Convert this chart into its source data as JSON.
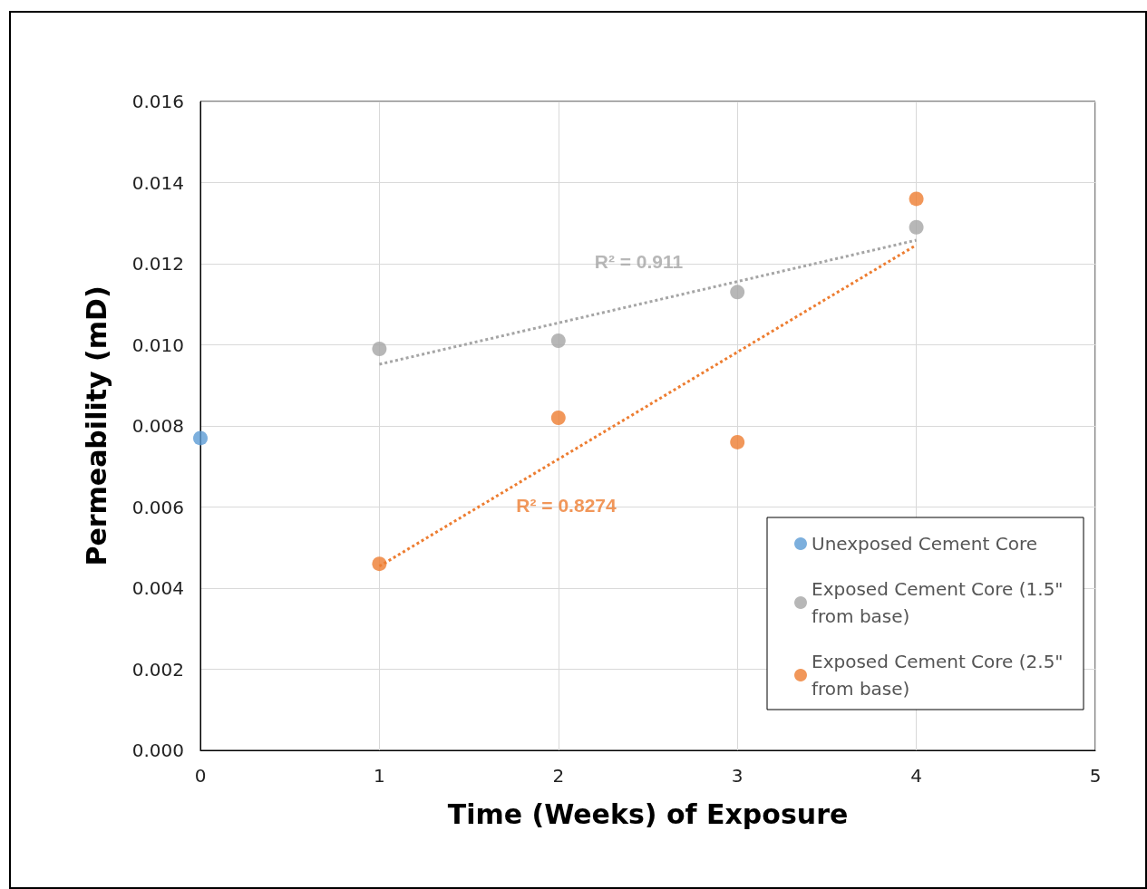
{
  "chart_data": {
    "type": "scatter",
    "xlabel": "Time (Weeks) of Exposure",
    "ylabel": "Permeability (mD)",
    "xlim": [
      0,
      5
    ],
    "xticks": [
      0,
      1,
      2,
      3,
      4,
      5
    ],
    "ylim": [
      0,
      0.016
    ],
    "yticks": [
      {
        "value": 0,
        "label": "0.000"
      },
      {
        "value": 0.002,
        "label": "0.002"
      },
      {
        "value": 0.004,
        "label": "0.004"
      },
      {
        "value": 0.006,
        "label": "0.006"
      },
      {
        "value": 0.008,
        "label": "0.008"
      },
      {
        "value": 0.01,
        "label": "0.010"
      },
      {
        "value": 0.012,
        "label": "0.012"
      },
      {
        "value": 0.014,
        "label": "0.014"
      },
      {
        "value": 0.016,
        "label": "0.016"
      }
    ],
    "grid": true,
    "legend": "bottom right",
    "marker": "circle",
    "series": [
      {
        "name": "Unexposed Cement Core",
        "color": "#5b9bd5",
        "x": [
          0
        ],
        "values": [
          0.0077
        ]
      },
      {
        "name": "Exposed Cement Core (1.5\" from base)",
        "color": "#a5a5a5",
        "x": [
          1,
          2,
          3,
          4
        ],
        "values": [
          0.0099,
          0.0101,
          0.0113,
          0.0129
        ]
      },
      {
        "name": "Exposed Cement Core (2.5\" from base)",
        "color": "#ed7d31",
        "x": [
          1,
          2,
          3,
          4
        ],
        "values": [
          0.0046,
          0.0082,
          0.0076,
          0.0136
        ]
      },
      {
        "type": "line",
        "color": "#a5a5a5",
        "line_style": "dotted",
        "marker": "none",
        "x": [
          1,
          4
        ],
        "values": [
          0.00952,
          0.01258
        ]
      },
      {
        "type": "line",
        "color": "#ed7d31",
        "line_style": "dotted",
        "marker": "none",
        "x": [
          1,
          4
        ],
        "values": [
          0.00454,
          0.01246
        ]
      }
    ],
    "annotations": [
      "R² = 0.911",
      "R² = 0.8274"
    ]
  }
}
